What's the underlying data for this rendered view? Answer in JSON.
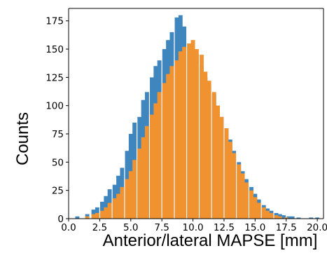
{
  "chart_data": {
    "type": "bar",
    "subtype": "histogram",
    "title": "",
    "xlabel": "Anterior/lateral MAPSE [mm]",
    "ylabel": "Counts",
    "xlim": [
      0.0,
      20.5
    ],
    "ylim": [
      0,
      186
    ],
    "xticks": [
      "0.0",
      "2.5",
      "5.0",
      "7.5",
      "10.0",
      "12.5",
      "15.0",
      "17.5",
      "20.0"
    ],
    "xtick_values": [
      0.0,
      2.5,
      5.0,
      7.5,
      10.0,
      12.5,
      15.0,
      17.5,
      20.0
    ],
    "yticks": [
      "0",
      "25",
      "50",
      "75",
      "100",
      "125",
      "150",
      "175"
    ],
    "ytick_values": [
      0,
      25,
      50,
      75,
      100,
      125,
      150,
      175
    ],
    "grid": false,
    "legend": "none",
    "series": [
      {
        "color": "#3f86bf",
        "bins": [
          [
            0.7,
            2
          ],
          [
            1.5,
            4
          ],
          [
            2.0,
            8
          ],
          [
            2.3,
            10
          ],
          [
            2.7,
            15
          ],
          [
            3.0,
            20
          ],
          [
            3.3,
            26
          ],
          [
            3.7,
            30
          ],
          [
            4.0,
            38
          ],
          [
            4.3,
            45
          ],
          [
            4.7,
            60
          ],
          [
            5.0,
            75
          ],
          [
            5.3,
            85
          ],
          [
            5.7,
            90
          ],
          [
            6.0,
            105
          ],
          [
            6.3,
            112
          ],
          [
            6.7,
            125
          ],
          [
            7.0,
            135
          ],
          [
            7.3,
            140
          ],
          [
            7.7,
            150
          ],
          [
            8.0,
            158
          ],
          [
            8.3,
            165
          ],
          [
            8.7,
            178
          ],
          [
            9.0,
            180
          ],
          [
            9.3,
            170
          ],
          [
            9.7,
            155
          ],
          [
            10.0,
            150
          ],
          [
            10.3,
            145
          ],
          [
            10.7,
            135
          ],
          [
            11.0,
            125
          ],
          [
            11.3,
            118
          ],
          [
            11.7,
            110
          ],
          [
            12.0,
            100
          ],
          [
            12.3,
            90
          ],
          [
            12.7,
            80
          ],
          [
            13.0,
            70
          ],
          [
            13.3,
            60
          ],
          [
            13.7,
            50
          ],
          [
            14.0,
            42
          ],
          [
            14.3,
            35
          ],
          [
            14.7,
            28
          ],
          [
            15.0,
            22
          ],
          [
            15.3,
            17
          ],
          [
            15.7,
            12
          ],
          [
            16.0,
            9
          ],
          [
            16.3,
            7
          ],
          [
            16.7,
            5
          ],
          [
            17.0,
            4
          ],
          [
            17.3,
            3
          ],
          [
            17.7,
            2
          ],
          [
            18.0,
            2
          ],
          [
            18.5,
            1
          ],
          [
            19.5,
            1
          ],
          [
            20.0,
            1
          ]
        ]
      },
      {
        "color": "#f0922f",
        "bins": [
          [
            1.5,
            2
          ],
          [
            2.0,
            4
          ],
          [
            2.3,
            5
          ],
          [
            2.7,
            7
          ],
          [
            3.0,
            10
          ],
          [
            3.3,
            14
          ],
          [
            3.7,
            18
          ],
          [
            4.0,
            22
          ],
          [
            4.3,
            28
          ],
          [
            4.7,
            35
          ],
          [
            5.0,
            42
          ],
          [
            5.3,
            52
          ],
          [
            5.7,
            62
          ],
          [
            6.0,
            72
          ],
          [
            6.3,
            82
          ],
          [
            6.7,
            92
          ],
          [
            7.0,
            102
          ],
          [
            7.3,
            112
          ],
          [
            7.7,
            120
          ],
          [
            8.0,
            128
          ],
          [
            8.3,
            135
          ],
          [
            8.7,
            140
          ],
          [
            9.0,
            148
          ],
          [
            9.3,
            152
          ],
          [
            9.7,
            155
          ],
          [
            10.0,
            158
          ],
          [
            10.3,
            150
          ],
          [
            10.7,
            145
          ],
          [
            11.0,
            130
          ],
          [
            11.3,
            122
          ],
          [
            11.7,
            112
          ],
          [
            12.0,
            100
          ],
          [
            12.3,
            90
          ],
          [
            12.7,
            80
          ],
          [
            13.0,
            68
          ],
          [
            13.3,
            58
          ],
          [
            13.7,
            48
          ],
          [
            14.0,
            40
          ],
          [
            14.3,
            32
          ],
          [
            14.7,
            25
          ],
          [
            15.0,
            19
          ],
          [
            15.3,
            14
          ],
          [
            15.7,
            10
          ],
          [
            16.0,
            7
          ],
          [
            16.3,
            5
          ],
          [
            16.7,
            3
          ],
          [
            17.0,
            2
          ],
          [
            17.5,
            1
          ]
        ]
      }
    ]
  }
}
